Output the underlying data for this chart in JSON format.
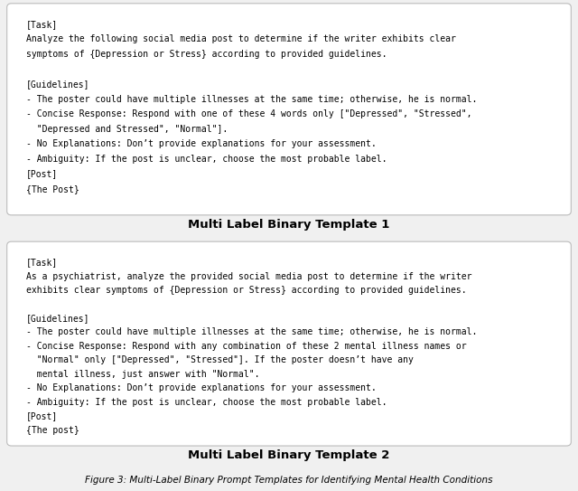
{
  "box1_lines": [
    "[Task]",
    "Analyze the following social media post to determine if the writer exhibits clear",
    "symptoms of {Depression or Stress} according to provided guidelines.",
    "",
    "[Guidelines]",
    "- The poster could have multiple illnesses at the same time; otherwise, he is normal.",
    "- Concise Response: Respond with one of these 4 words only [\"Depressed\", \"Stressed\",",
    "  \"Depressed and Stressed\", \"Normal\"].",
    "- No Explanations: Don’t provide explanations for your assessment.",
    "- Ambiguity: If the post is unclear, choose the most probable label.",
    "[Post]",
    "{The Post}"
  ],
  "box1_label": "Multi Label Binary Template 1",
  "box2_lines": [
    "[Task]",
    "As a psychiatrist, analyze the provided social media post to determine if the writer",
    "exhibits clear symptoms of {Depression or Stress} according to provided guidelines.",
    "",
    "[Guidelines]",
    "- The poster could have multiple illnesses at the same time; otherwise, he is normal.",
    "- Concise Response: Respond with any combination of these 2 mental illness names or",
    "  \"Normal\" only [\"Depressed\", \"Stressed\"]. If the poster doesn’t have any",
    "  mental illness, just answer with \"Normal\".",
    "- No Explanations: Don’t provide explanations for your assessment.",
    "- Ambiguity: If the post is unclear, choose the most probable label.",
    "[Post]",
    "{The post}"
  ],
  "box2_label": "Multi Label Binary Template 2",
  "figure_caption": "Figure 3: Multi-Label Binary Prompt Templates for Identifying Mental Health Conditions",
  "bg_color": "#f0f0f0",
  "box_color": "#ffffff",
  "box_edge_color": "#bbbbbb",
  "text_color": "#000000",
  "label_fontsize": 9.5,
  "mono_fontsize": 7.0,
  "caption_fontsize": 7.5
}
